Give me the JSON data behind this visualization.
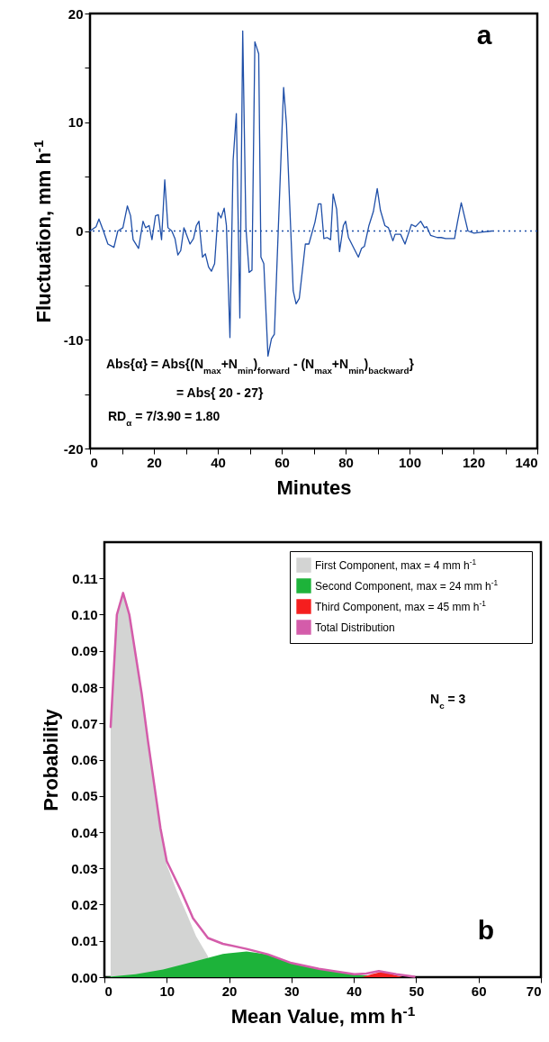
{
  "chart_data": [
    {
      "type": "line",
      "xlabel": "Minutes",
      "ylabel": "Fluctuation, mm h$^{-1}$",
      "xlim": [
        0,
        140
      ],
      "ylim": [
        -20,
        20
      ],
      "xticks": [
        0,
        {
          "value": 10,
          "label": null
        },
        20,
        {
          "value": 30,
          "label": null
        },
        40,
        {
          "value": 50,
          "label": null
        },
        60,
        {
          "value": 70,
          "label": null
        },
        80,
        {
          "value": 90,
          "label": null
        },
        100,
        {
          "value": 110,
          "label": null
        },
        120,
        {
          "value": 130,
          "label": null
        },
        140
      ],
      "yticks": [
        -20,
        {
          "value": -15,
          "label": null
        },
        -10,
        {
          "value": -5,
          "label": null
        },
        0,
        {
          "value": 5,
          "label": null
        },
        10,
        {
          "value": 15,
          "label": null
        },
        20
      ],
      "marker": "none",
      "series": [
        {
          "color": "#1f4fa8",
          "x": [
            0,
            1.9,
            2.8,
            4.2,
            5.6,
            7.5,
            8.7,
            10.3,
            11.7,
            12.7,
            13.5,
            15.2,
            16.6,
            17.4,
            18.5,
            19.4,
            20.5,
            21.4,
            22.4,
            23.4,
            24.4,
            25.6,
            26.6,
            27.5,
            28.4,
            29.4,
            31.3,
            32.4,
            33.3,
            34.1,
            35.2,
            36.1,
            37.1,
            38,
            39,
            40.1,
            41,
            42,
            42.7,
            43.8,
            44.8,
            45.8,
            46.9,
            47.8,
            48.8,
            49.8,
            50.7,
            51.6,
            52.8,
            53.5,
            54.4,
            55.7,
            56.8,
            57.7,
            59.4,
            60.6,
            61.5,
            63.6,
            64.5,
            65.5,
            67.4,
            68.5,
            70.4,
            71.5,
            72.3,
            73.2,
            74.2,
            75.3,
            76.1,
            77.2,
            78.1,
            79.3,
            80,
            80.9,
            82.6,
            84,
            85,
            85.9,
            87.3,
            88.7,
            89.9,
            90.9,
            92.3,
            93.4,
            94.8,
            95.5,
            97.2,
            98.6,
            100.6,
            101.9,
            103.5,
            104.7,
            105.4,
            106.6,
            108.7,
            109.9,
            111.3,
            114.1,
            115,
            116.2,
            117.4,
            118.3,
            120.2,
            123,
            125.8
          ],
          "values": [
            0,
            0.4,
            1.1,
            0,
            -1.2,
            -1.5,
            0,
            0.3,
            2.3,
            1.4,
            -0.8,
            -1.6,
            0.9,
            0.3,
            0.5,
            -0.8,
            1.4,
            1.5,
            -0.8,
            4.7,
            0.3,
            0,
            -0.7,
            -2.2,
            -1.8,
            0.3,
            -1.2,
            -0.7,
            0.5,
            0.9,
            -2.4,
            -2.1,
            -3.3,
            -3.7,
            -3,
            1.7,
            1.2,
            2.1,
            0.5,
            -9.8,
            6.5,
            10.8,
            -8,
            18.4,
            0.3,
            -3.8,
            -3.6,
            17.4,
            16.3,
            -2.4,
            -3,
            -11.5,
            -9.9,
            -9.5,
            3.8,
            13.2,
            9.8,
            -5.5,
            -6.7,
            -6.2,
            -1.2,
            -1.2,
            0.8,
            2.5,
            2.5,
            -0.7,
            -0.6,
            -0.8,
            3.4,
            2,
            -1.9,
            0.5,
            0.9,
            -0.6,
            -1.6,
            -2.4,
            -1.6,
            -1.4,
            0.5,
            1.8,
            3.9,
            1.9,
            0.5,
            0.3,
            -0.9,
            -0.3,
            -0.3,
            -1.2,
            0.6,
            0.4,
            0.9,
            0.3,
            0.4,
            -0.4,
            -0.6,
            -0.6,
            -0.7,
            -0.7,
            0.8,
            2.6,
            1.1,
            0,
            -0.2,
            -0.1,
            0
          ]
        }
      ],
      "ref_lines": [
        {
          "axis": "y",
          "value": 0,
          "color": "#1f4fa8",
          "line_style": "dotted"
        }
      ],
      "annotations": [
        "a",
        "Abs{α} = Abs{(N$_{max}$+N$_{min}$)$_{forward}$ -  (N$_{max}$+N$_{min}$)$_{backward}$}",
        "= Abs{ 20 - 27}",
        "RD$_{α}$ = 7/3.90 = 1.80"
      ]
    },
    {
      "type": "area",
      "xlabel": "Mean Value, mm h$^{-1}$",
      "ylabel": "Probability",
      "xlim": [
        0,
        70
      ],
      "ylim": [
        0,
        0.12
      ],
      "xticks": [
        0,
        10,
        20,
        30,
        40,
        50,
        60,
        70
      ],
      "yticks": [
        {
          "value": 0,
          "label": "0.00"
        },
        0.01,
        0.02,
        0.03,
        0.04,
        0.05,
        0.06,
        0.07,
        0.08,
        0.09,
        {
          "value": 0.1,
          "label": "0.10"
        },
        0.11
      ],
      "legend": "top right",
      "series": [
        {
          "name": "First Component, max = 4 mm h$^{-1}$",
          "color": "#d3d4d3",
          "x": [
            1,
            2,
            3,
            4,
            5,
            6,
            7,
            8,
            9,
            10,
            11.6,
            13.3,
            14.7,
            16.6
          ],
          "values": [
            0.068,
            0.1,
            0.106,
            0.1,
            0.089,
            0.077,
            0.064,
            0.052,
            0.04,
            0.031,
            0.0238,
            0.0171,
            0.0113,
            0.0058
          ]
        },
        {
          "name": "Second Component, max = 24 mm h$^{-1}$",
          "color": "#1db33a",
          "x": [
            0,
            5,
            9.4,
            14.2,
            19,
            22.8,
            26.2,
            30,
            34.4,
            40.1,
            42.9,
            45.8
          ],
          "values": [
            0,
            0.0008,
            0.0021,
            0.0042,
            0.0064,
            0.0071,
            0.0063,
            0.0039,
            0.0023,
            0.0008,
            0.0003,
            0
          ]
        },
        {
          "name": "Third Component, max = 45 mm h$^{-1}$",
          "color": "#f51e1e",
          "x": [
            41.3,
            43,
            44.5,
            46,
            47.8
          ],
          "values": [
            0,
            0.0009,
            0.0015,
            0.0009,
            0
          ]
        },
        {
          "name": "Total Distribution",
          "type": "line",
          "color": "#d45caa",
          "x": [
            1,
            2,
            3,
            4,
            5,
            6,
            7,
            8,
            9,
            10,
            12.3,
            14.2,
            16.6,
            19,
            22.8,
            26.2,
            30,
            34.4,
            40.1,
            42,
            44,
            46.8,
            49.7
          ],
          "values": [
            0.069,
            0.1,
            0.106,
            0.1,
            0.089,
            0.078,
            0.065,
            0.053,
            0.041,
            0.032,
            0.0238,
            0.0163,
            0.0108,
            0.0092,
            0.0078,
            0.0063,
            0.0039,
            0.0023,
            0.0008,
            0.001,
            0.0017,
            0.0008,
            0.0001
          ]
        }
      ],
      "annotations": [
        "b",
        "N$_{c}$ = 3"
      ]
    }
  ]
}
